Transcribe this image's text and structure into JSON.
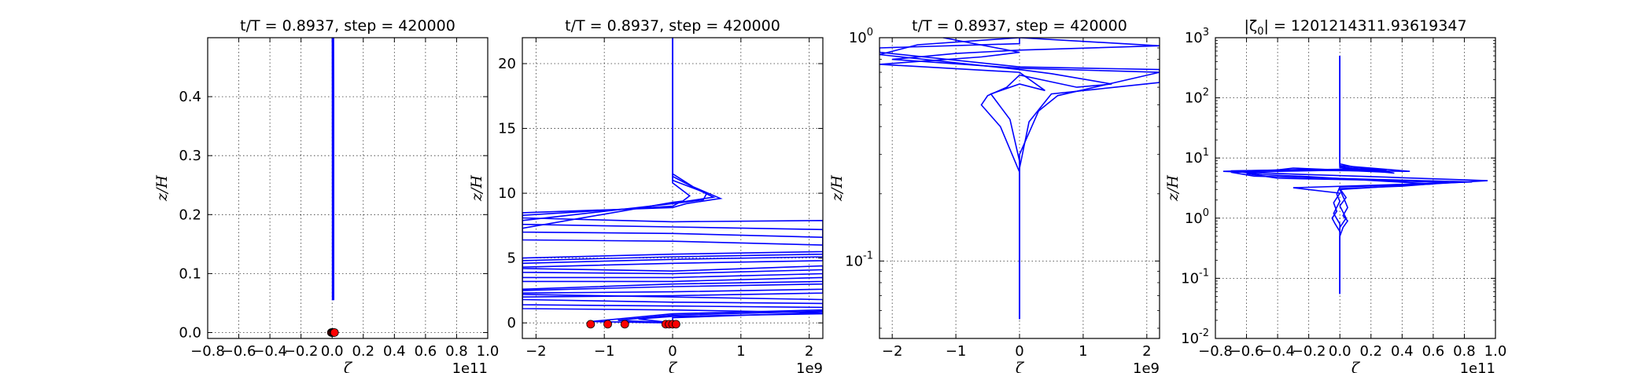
{
  "chart_data": [
    {
      "type": "line",
      "title": "t/T = 0.8937, step = 420000",
      "xlabel": "ζ",
      "ylabel": "z/H",
      "xlim": [
        -0.8,
        1.0
      ],
      "ylim": [
        -0.01,
        0.5
      ],
      "xscale": "linear",
      "yscale": "linear",
      "x_offset_text": "1e11",
      "xticks": [
        "−0.8",
        "−0.6",
        "−0.4",
        "−0.2",
        "0.0",
        "0.2",
        "0.4",
        "0.6",
        "0.8",
        "1.0"
      ],
      "yticks": [
        "0.0",
        "0.1",
        "0.2",
        "0.3",
        "0.4"
      ],
      "grid": true,
      "line_color": "#0000ff",
      "marker_color": "#ff0000",
      "profiles": [
        {
          "points": [
            [
              0.002,
              0.055
            ],
            [
              0.002,
              0.2
            ],
            [
              0.0015,
              0.4
            ],
            [
              0.001,
              0.5
            ]
          ]
        },
        {
          "points": [
            [
              0.006,
              0.055
            ],
            [
              0.006,
              0.2
            ],
            [
              0.005,
              0.4
            ],
            [
              0.004,
              0.5
            ]
          ]
        },
        {
          "points": [
            [
              0.01,
              0.055
            ],
            [
              0.01,
              0.2
            ],
            [
              0.01,
              0.4
            ],
            [
              0.009,
              0.5
            ]
          ]
        }
      ],
      "markers": [
        [
          -0.005,
          0.0
        ],
        [
          0.0,
          0.0
        ],
        [
          0.005,
          0.0
        ],
        [
          0.01,
          0.0
        ],
        [
          0.015,
          0.0
        ]
      ]
    },
    {
      "type": "line",
      "title": "t/T = 0.8937, step = 420000",
      "xlabel": "ζ",
      "ylabel": "z/H",
      "xlim": [
        -2.2,
        2.2
      ],
      "ylim": [
        -1.2,
        22
      ],
      "xscale": "linear",
      "yscale": "linear",
      "x_offset_text": "1e9",
      "xticks": [
        "−2",
        "−1",
        "0",
        "1",
        "2"
      ],
      "yticks": [
        "0",
        "5",
        "10",
        "15",
        "20"
      ],
      "grid": true,
      "line_color": "#0000ff",
      "marker_color": "#ff0000",
      "profiles": [
        {
          "points": [
            [
              0,
              22
            ],
            [
              0,
              11.5
            ],
            [
              0.3,
              10.5
            ],
            [
              0.7,
              9.6
            ],
            [
              0.2,
              9.2
            ],
            [
              0,
              8.9
            ],
            [
              -2.2,
              8.5
            ],
            [
              -2.2,
              8.1
            ],
            [
              0,
              7.8
            ],
            [
              2.2,
              7.9
            ],
            [
              2.2,
              5.5
            ],
            [
              0,
              5.3
            ],
            [
              -2.2,
              5.0
            ],
            [
              -2.2,
              4.2
            ],
            [
              0,
              4.0
            ],
            [
              2.2,
              4.4
            ],
            [
              2.2,
              3.2
            ],
            [
              0,
              3.0
            ],
            [
              -2.2,
              2.6
            ],
            [
              -2.2,
              2.2
            ],
            [
              0,
              2.0
            ],
            [
              2.2,
              1.8
            ],
            [
              2.2,
              0.7
            ],
            [
              0,
              0.5
            ],
            [
              -0.5,
              0.3
            ],
            [
              0,
              0.0
            ]
          ]
        },
        {
          "points": [
            [
              0,
              22
            ],
            [
              0,
              11.3
            ],
            [
              0.4,
              10.2
            ],
            [
              0.6,
              9.7
            ],
            [
              0.1,
              9.3
            ],
            [
              0,
              9.0
            ],
            [
              -2.2,
              8.3
            ],
            [
              -2.2,
              7.6
            ],
            [
              0,
              7.4
            ],
            [
              2.2,
              7.2
            ],
            [
              2.2,
              5.3
            ],
            [
              0,
              5.1
            ],
            [
              -2.2,
              4.8
            ],
            [
              -2.2,
              3.9
            ],
            [
              0,
              3.8
            ],
            [
              2.2,
              4.1
            ],
            [
              2.2,
              3.0
            ],
            [
              0,
              2.8
            ],
            [
              -2.2,
              2.5
            ],
            [
              -2.2,
              1.8
            ],
            [
              0,
              1.6
            ],
            [
              2.2,
              1.5
            ],
            [
              2.2,
              0.9
            ],
            [
              0,
              0.6
            ],
            [
              -0.8,
              0.2
            ],
            [
              0,
              0.0
            ]
          ]
        },
        {
          "points": [
            [
              0,
              22
            ],
            [
              0,
              11.0
            ],
            [
              0.5,
              10.0
            ],
            [
              0.45,
              9.5
            ],
            [
              0,
              9.2
            ],
            [
              -2.2,
              7.9
            ],
            [
              -2.2,
              7.0
            ],
            [
              0,
              6.9
            ],
            [
              2.2,
              6.6
            ],
            [
              2.2,
              5.1
            ],
            [
              0,
              4.9
            ],
            [
              -2.2,
              4.6
            ],
            [
              -2.2,
              3.5
            ],
            [
              0,
              3.5
            ],
            [
              2.2,
              3.8
            ],
            [
              2.2,
              2.6
            ],
            [
              0,
              2.4
            ],
            [
              -2.2,
              2.3
            ],
            [
              -2.2,
              1.4
            ],
            [
              0,
              1.3
            ],
            [
              2.2,
              1.2
            ],
            [
              2.2,
              1.0
            ],
            [
              0,
              0.7
            ],
            [
              -1.2,
              0.1
            ],
            [
              0,
              0.0
            ]
          ]
        },
        {
          "points": [
            [
              0,
              22
            ],
            [
              0,
              10.8
            ],
            [
              0.25,
              9.8
            ],
            [
              0.15,
              9.4
            ],
            [
              0,
              9.3
            ],
            [
              -2.2,
              7.3
            ],
            [
              -2.2,
              6.4
            ],
            [
              0,
              6.3
            ],
            [
              2.2,
              6.0
            ],
            [
              2.2,
              4.8
            ],
            [
              0,
              4.6
            ],
            [
              -2.2,
              4.3
            ],
            [
              -2.2,
              3.2
            ],
            [
              0,
              3.2
            ],
            [
              2.2,
              3.5
            ],
            [
              2.2,
              2.3
            ],
            [
              0,
              2.1
            ],
            [
              -2.2,
              2.0
            ],
            [
              -2.2,
              1.1
            ],
            [
              0,
              1.0
            ],
            [
              2.2,
              0.8
            ],
            [
              0,
              0.4
            ],
            [
              0,
              0.0
            ]
          ]
        }
      ],
      "markers": [
        [
          -1.2,
          -0.1
        ],
        [
          -0.95,
          -0.1
        ],
        [
          -0.7,
          -0.1
        ],
        [
          -0.1,
          -0.1
        ],
        [
          -0.05,
          -0.1
        ],
        [
          0.0,
          -0.1
        ],
        [
          0.05,
          -0.1
        ]
      ]
    },
    {
      "type": "line",
      "title": "t/T = 0.8937, step = 420000",
      "xlabel": "ζ",
      "ylabel": "z/H",
      "xlim": [
        -2.2,
        2.2
      ],
      "ylim": [
        0.045,
        1.0
      ],
      "xscale": "linear",
      "yscale": "log",
      "x_offset_text": "1e9",
      "xticks": [
        "−2",
        "−1",
        "0",
        "1",
        "2"
      ],
      "yticks": [
        {
          "base": "10",
          "exp": "-1",
          "value": 0.1
        },
        {
          "base": "10",
          "exp": "0",
          "value": 1.0
        }
      ],
      "grid": true,
      "line_color": "#0000ff",
      "profiles": [
        {
          "points": [
            [
              0,
              0.055
            ],
            [
              0,
              0.26
            ],
            [
              0.15,
              0.42
            ],
            [
              0.5,
              0.56
            ],
            [
              1.5,
              0.6
            ],
            [
              2.2,
              0.63
            ],
            [
              2.2,
              0.72
            ],
            [
              0,
              0.74
            ],
            [
              -2.2,
              0.86
            ],
            [
              -2.2,
              0.9
            ],
            [
              0,
              0.94
            ],
            [
              0,
              1.0
            ]
          ]
        },
        {
          "points": [
            [
              0,
              0.055
            ],
            [
              0,
              0.25
            ],
            [
              -0.3,
              0.4
            ],
            [
              -0.6,
              0.5
            ],
            [
              -0.5,
              0.55
            ],
            [
              -0.2,
              0.6
            ],
            [
              0,
              0.68
            ],
            [
              0.9,
              0.6
            ],
            [
              1.45,
              0.62
            ],
            [
              0.5,
              0.69
            ],
            [
              0,
              0.72
            ],
            [
              -2.2,
              0.84
            ],
            [
              -1.6,
              0.93
            ],
            [
              0,
              1.0
            ]
          ]
        },
        {
          "points": [
            [
              0,
              0.055
            ],
            [
              0,
              0.3
            ],
            [
              0.3,
              0.47
            ],
            [
              0.6,
              0.55
            ],
            [
              2.2,
              0.7
            ],
            [
              0,
              0.73
            ],
            [
              -2.0,
              0.8
            ],
            [
              -1.0,
              0.85
            ],
            [
              0,
              0.88
            ],
            [
              2.2,
              0.92
            ],
            [
              0,
              1.0
            ]
          ]
        },
        {
          "points": [
            [
              0,
              0.055
            ],
            [
              0,
              0.28
            ],
            [
              -0.15,
              0.43
            ],
            [
              -0.45,
              0.56
            ],
            [
              0,
              0.62
            ],
            [
              0.4,
              0.58
            ],
            [
              0,
              0.7
            ],
            [
              -2.2,
              0.76
            ],
            [
              -0.6,
              0.82
            ],
            [
              0,
              0.86
            ],
            [
              -1.2,
              1.0
            ]
          ]
        }
      ]
    },
    {
      "type": "line",
      "title": "|ζ0| = 1201214311.93619347",
      "title_prefix": "|ζ",
      "title_sub": "0",
      "title_suffix": "| = 1201214311.93619347",
      "xlabel": "ζ",
      "ylabel": "z/H",
      "xlim": [
        -0.8,
        1.0
      ],
      "ylim": [
        0.01,
        1000
      ],
      "xscale": "linear",
      "yscale": "log",
      "x_offset_text": "1e11",
      "xticks": [
        "−0.8",
        "−0.6",
        "−0.4",
        "−0.2",
        "0.0",
        "0.2",
        "0.4",
        "0.6",
        "0.8",
        "1.0"
      ],
      "yticks": [
        {
          "base": "10",
          "exp": "-2",
          "value": 0.01
        },
        {
          "base": "10",
          "exp": "-1",
          "value": 0.1
        },
        {
          "base": "10",
          "exp": "0",
          "value": 1
        },
        {
          "base": "10",
          "exp": "1",
          "value": 10
        },
        {
          "base": "10",
          "exp": "2",
          "value": 100
        },
        {
          "base": "10",
          "exp": "3",
          "value": 1000
        }
      ],
      "grid": true,
      "line_color": "#0000ff",
      "profiles": [
        {
          "points": [
            [
              0,
              0.055
            ],
            [
              0,
              0.5
            ],
            [
              0.02,
              0.7
            ],
            [
              0.05,
              0.9
            ],
            [
              0.02,
              1.1
            ],
            [
              0.05,
              1.5
            ],
            [
              0.03,
              2.0
            ],
            [
              0,
              3.0
            ],
            [
              0.5,
              3.6
            ],
            [
              0.95,
              4.2
            ],
            [
              0.3,
              4.8
            ],
            [
              -0.3,
              5.4
            ],
            [
              -0.75,
              6.0
            ],
            [
              -0.2,
              6.5
            ],
            [
              0.3,
              6.3
            ],
            [
              0.1,
              7.0
            ],
            [
              0,
              8.0
            ],
            [
              0,
              500
            ]
          ]
        },
        {
          "points": [
            [
              0,
              0.055
            ],
            [
              0,
              0.6
            ],
            [
              -0.03,
              0.8
            ],
            [
              -0.05,
              1.0
            ],
            [
              -0.02,
              1.3
            ],
            [
              -0.04,
              1.8
            ],
            [
              0,
              2.6
            ],
            [
              -0.3,
              3.2
            ],
            [
              0.2,
              3.5
            ],
            [
              0.85,
              4.0
            ],
            [
              0.1,
              4.5
            ],
            [
              -0.55,
              5.0
            ],
            [
              -0.7,
              5.8
            ],
            [
              -0.1,
              6.2
            ],
            [
              0.45,
              6.0
            ],
            [
              0,
              7.5
            ],
            [
              0,
              500
            ]
          ]
        },
        {
          "points": [
            [
              0,
              0.055
            ],
            [
              0,
              0.7
            ],
            [
              0.04,
              1.0
            ],
            [
              0,
              1.6
            ],
            [
              0.04,
              2.2
            ],
            [
              0,
              3.1
            ],
            [
              0.4,
              3.4
            ],
            [
              0.7,
              3.9
            ],
            [
              0.2,
              4.3
            ],
            [
              -0.4,
              4.6
            ],
            [
              -0.6,
              5.5
            ],
            [
              -0.3,
              6.8
            ],
            [
              0.3,
              5.8
            ],
            [
              0,
              7.2
            ],
            [
              0,
              500
            ]
          ]
        },
        {
          "points": [
            [
              0,
              0.055
            ],
            [
              0,
              0.8
            ],
            [
              -0.04,
              1.2
            ],
            [
              0,
              1.9
            ],
            [
              -0.02,
              2.5
            ],
            [
              0,
              3.3
            ],
            [
              0.6,
              3.7
            ],
            [
              0.3,
              4.1
            ],
            [
              -0.2,
              4.9
            ],
            [
              -0.5,
              5.3
            ],
            [
              -0.7,
              6.1
            ],
            [
              0.2,
              6.6
            ],
            [
              0.35,
              5.6
            ],
            [
              0,
              6.9
            ],
            [
              0,
              500
            ]
          ]
        }
      ]
    }
  ]
}
